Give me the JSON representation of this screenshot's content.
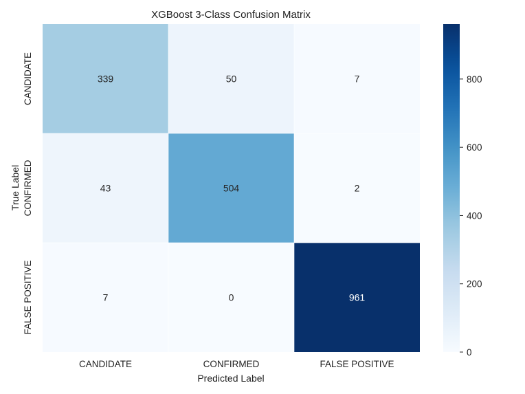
{
  "chart_data": {
    "type": "heatmap",
    "title": "XGBoost 3-Class Confusion Matrix",
    "xlabel": "Predicted Label",
    "ylabel": "True Label",
    "x_categories": [
      "CANDIDATE",
      "CONFIRMED",
      "FALSE POSITIVE"
    ],
    "y_categories": [
      "CANDIDATE",
      "CONFIRMED",
      "FALSE POSITIVE"
    ],
    "values": [
      [
        339,
        50,
        7
      ],
      [
        43,
        504,
        2
      ],
      [
        7,
        0,
        961
      ]
    ],
    "colormap": "Blues",
    "color_range": [
      0,
      961
    ],
    "colorbar_ticks": [
      0,
      200,
      400,
      600,
      800
    ],
    "grid": false
  }
}
